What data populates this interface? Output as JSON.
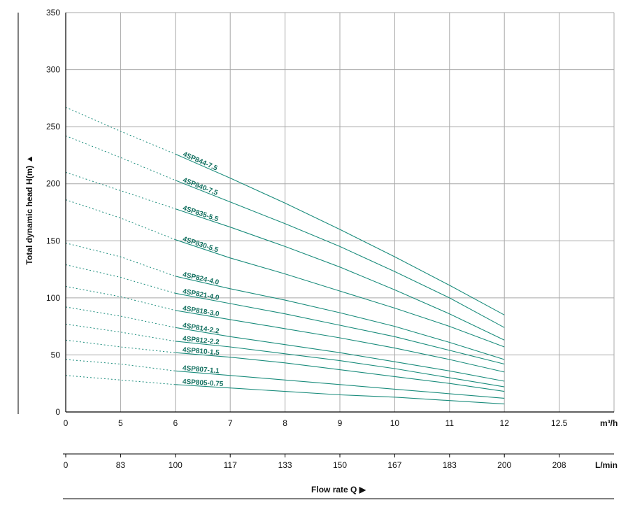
{
  "chart_data": {
    "type": "line",
    "ylabel": "Total dynamic head H(m) ▲",
    "xlabel": "Flow rate Q ▶",
    "x_unit_primary": "m³/h",
    "x_unit_secondary": "L/min",
    "y_ticks": [
      "0",
      "50",
      "100",
      "150",
      "200",
      "250",
      "300",
      "350"
    ],
    "x_ticks_m3h": [
      "0",
      "5",
      "6",
      "7",
      "8",
      "9",
      "10",
      "11",
      "12",
      "12.5"
    ],
    "x_ticks_lmin": [
      "0",
      "83",
      "100",
      "117",
      "133",
      "150",
      "167",
      "183",
      "200",
      "208"
    ],
    "ylim": [
      0,
      350
    ],
    "grid": true,
    "dotted_until_x": "6",
    "colors": {
      "curve": "#1a8c7c",
      "label": "#137060",
      "grid": "#a8a8a8",
      "axis": "#000000"
    },
    "series": [
      {
        "name": "4SP844-7.5",
        "points": [
          [
            0,
            267
          ],
          [
            5,
            246
          ],
          [
            6,
            226
          ],
          [
            7,
            205
          ],
          [
            8,
            183
          ],
          [
            9,
            160
          ],
          [
            10,
            136
          ],
          [
            11,
            111
          ],
          [
            12,
            85
          ]
        ]
      },
      {
        "name": "4SP840-7.5",
        "points": [
          [
            0,
            242
          ],
          [
            5,
            223
          ],
          [
            6,
            203
          ],
          [
            7,
            184
          ],
          [
            8,
            165
          ],
          [
            9,
            145
          ],
          [
            10,
            123
          ],
          [
            11,
            100
          ],
          [
            12,
            74
          ]
        ]
      },
      {
        "name": "4SP835-5.5",
        "points": [
          [
            0,
            210
          ],
          [
            5,
            194
          ],
          [
            6,
            178
          ],
          [
            7,
            162
          ],
          [
            8,
            145
          ],
          [
            9,
            127
          ],
          [
            10,
            107
          ],
          [
            11,
            86
          ],
          [
            12,
            63
          ]
        ]
      },
      {
        "name": "4SP830-5.5",
        "points": [
          [
            0,
            186
          ],
          [
            5,
            170
          ],
          [
            6,
            151
          ],
          [
            7,
            135
          ],
          [
            8,
            121
          ],
          [
            9,
            106
          ],
          [
            10,
            91
          ],
          [
            11,
            75
          ],
          [
            12,
            57
          ]
        ]
      },
      {
        "name": "4SP824-4.0",
        "points": [
          [
            0,
            148
          ],
          [
            5,
            136
          ],
          [
            6,
            119
          ],
          [
            7,
            108
          ],
          [
            8,
            98
          ],
          [
            9,
            87
          ],
          [
            10,
            75
          ],
          [
            11,
            61
          ],
          [
            12,
            46
          ]
        ]
      },
      {
        "name": "4SP821-4.0",
        "points": [
          [
            0,
            129
          ],
          [
            5,
            118
          ],
          [
            6,
            104
          ],
          [
            7,
            95
          ],
          [
            8,
            86
          ],
          [
            9,
            76
          ],
          [
            10,
            66
          ],
          [
            11,
            54
          ],
          [
            12,
            42
          ]
        ]
      },
      {
        "name": "4SP818-3.0",
        "points": [
          [
            0,
            110
          ],
          [
            5,
            101
          ],
          [
            6,
            89
          ],
          [
            7,
            81
          ],
          [
            8,
            73
          ],
          [
            9,
            65
          ],
          [
            10,
            56
          ],
          [
            11,
            46
          ],
          [
            12,
            35
          ]
        ]
      },
      {
        "name": "4SP814-2.2",
        "points": [
          [
            0,
            92
          ],
          [
            5,
            84
          ],
          [
            6,
            74
          ],
          [
            7,
            66
          ],
          [
            8,
            59
          ],
          [
            9,
            52
          ],
          [
            10,
            44
          ],
          [
            11,
            36
          ],
          [
            12,
            27
          ]
        ]
      },
      {
        "name": "4SP812-2.2",
        "points": [
          [
            0,
            77
          ],
          [
            5,
            70
          ],
          [
            6,
            62
          ],
          [
            7,
            57
          ],
          [
            8,
            51
          ],
          [
            9,
            45
          ],
          [
            10,
            38
          ],
          [
            11,
            30
          ],
          [
            12,
            22
          ]
        ]
      },
      {
        "name": "4SP810-1.5",
        "points": [
          [
            0,
            63
          ],
          [
            5,
            57
          ],
          [
            6,
            52
          ],
          [
            7,
            48
          ],
          [
            8,
            43
          ],
          [
            9,
            37
          ],
          [
            10,
            31
          ],
          [
            11,
            25
          ],
          [
            12,
            18
          ]
        ]
      },
      {
        "name": "4SP807-1.1",
        "points": [
          [
            0,
            46
          ],
          [
            5,
            42
          ],
          [
            6,
            36
          ],
          [
            7,
            32
          ],
          [
            8,
            28
          ],
          [
            9,
            24
          ],
          [
            10,
            20
          ],
          [
            11,
            16
          ],
          [
            12,
            12
          ]
        ]
      },
      {
        "name": "4SP805-0.75",
        "points": [
          [
            0,
            32
          ],
          [
            5,
            28
          ],
          [
            6,
            24
          ],
          [
            7,
            21
          ],
          [
            8,
            18
          ],
          [
            9,
            15
          ],
          [
            10,
            13
          ],
          [
            11,
            10
          ],
          [
            12,
            7
          ]
        ]
      }
    ]
  }
}
